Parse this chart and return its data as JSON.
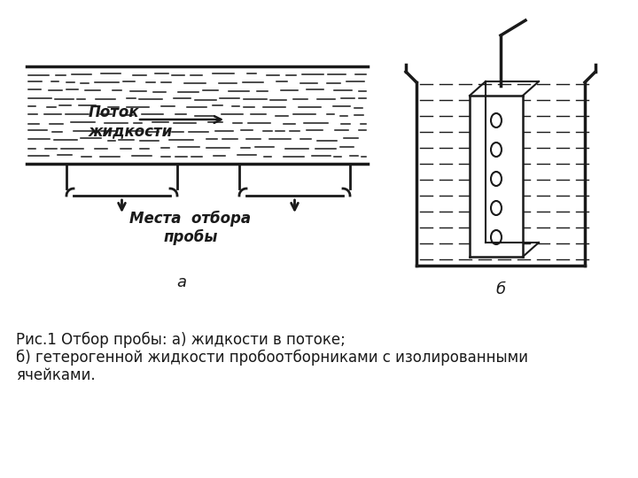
{
  "bg_color": "#ffffff",
  "line_color": "#1a1a1a",
  "caption_line1": "Рис.1 Отбор пробы: а) жидкости в потоке;",
  "caption_line2": "б) гетерогенной жидкости пробоотборниками с изолированными",
  "caption_line3": "ячейками.",
  "label_a": "а",
  "label_b": "б",
  "label_potok": "Поток\nжидкости",
  "label_mesta": "Места  отбора\nпробы",
  "font_size_caption": 12,
  "font_size_label": 12,
  "font_size_italic": 11
}
